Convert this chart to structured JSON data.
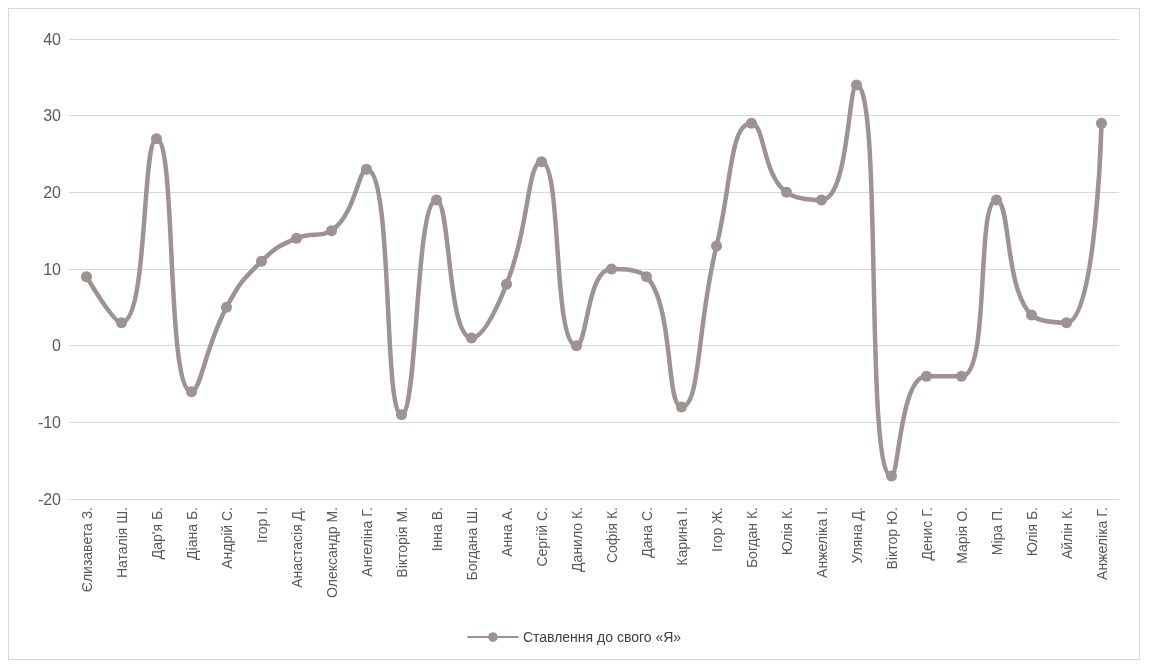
{
  "chart_data": {
    "type": "line",
    "categories": [
      "Єлизавета З.",
      "Наталія Ш.",
      "Дар'я Б.",
      "Діана Б.",
      "Андрій С.",
      "Ігор І.",
      "Анастасія Д.",
      "Олександр М.",
      "Ангеліна Г.",
      "Вікторія М.",
      "Інна В.",
      "Богдана Ш.",
      "Анна А.",
      "Сергій С.",
      "Данило К.",
      "Софія К.",
      "Дана С.",
      "Карина І.",
      "Ігор Ж.",
      "Богдан К.",
      "Юлія К.",
      "Анжеліка І.",
      "Уляна Д.",
      "Віктор Ю.",
      "Денис Г.",
      "Марія О.",
      "Міра П.",
      "Юлія Б.",
      "Айлін К.",
      "Анжеліка Г."
    ],
    "series": [
      {
        "name": "Ставлення до свого «Я»",
        "color": "#9e9393",
        "values": [
          9,
          3,
          27,
          -6,
          5,
          11,
          14,
          15,
          23,
          -9,
          19,
          1,
          8,
          24,
          0,
          10,
          9,
          -8,
          13,
          29,
          20,
          19,
          34,
          -17,
          -4,
          -4,
          19,
          4,
          3,
          29
        ]
      }
    ],
    "ylim": [
      -20,
      40
    ],
    "yticks": [
      -20,
      -10,
      0,
      10,
      20,
      30,
      40
    ],
    "grid": "y",
    "legend": "bottom",
    "marker": "circle",
    "line_style": "solid"
  }
}
